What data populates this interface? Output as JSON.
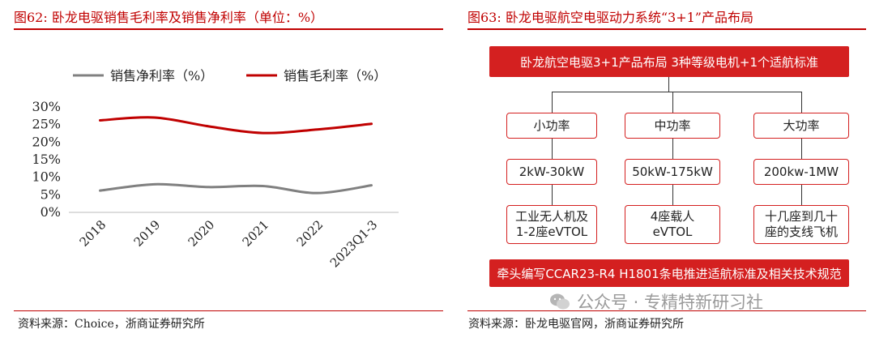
{
  "left": {
    "figure_title": "图62:   卧龙电驱销售毛利率及销售净利率（单位：%）",
    "source": "资料来源：Choice，浙商证券研究所"
  },
  "right": {
    "figure_title": "图63:   卧龙电驱航空电驱动力系统“3+1”产品布局",
    "source": "资料来源：卧龙电驱官网，浙商证券研究所",
    "top_banner": "卧龙航空电驱3+1产品布局  3种等级电机+1个适航标准",
    "bottom_banner": "牵头编写CCAR23-R4 H1801条电推进适航标准及相关技术规范",
    "columns": [
      {
        "level": "小功率",
        "power": "2kW-30kW",
        "use_line1": "工业无人机及",
        "use_line2": "1-2座eVTOL"
      },
      {
        "level": "中功率",
        "power": "50kW-175kW",
        "use_line1": "4座载人",
        "use_line2": "eVTOL"
      },
      {
        "level": "大功率",
        "power": "200kw-1MW",
        "use_line1": "十几座到几十",
        "use_line2": "座的支线飞机"
      }
    ],
    "watermark": "公众号 · 专精特新研习社"
  },
  "chart_data": {
    "type": "line",
    "title": "卧龙电驱销售毛利率及销售净利率（单位：%）",
    "categories": [
      "2018",
      "2019",
      "2020",
      "2021",
      "2022",
      "2023Q1-3"
    ],
    "yticks": [
      "0%",
      "5%",
      "10%",
      "15%",
      "20%",
      "25%",
      "30%"
    ],
    "ylim": [
      0,
      30
    ],
    "grid": false,
    "legend": "top",
    "series": [
      {
        "name": "销售净利率（%）",
        "color": "#808080",
        "values": [
          6.2,
          8.0,
          7.2,
          7.5,
          5.5,
          7.7
        ]
      },
      {
        "name": "销售毛利率（%）",
        "color": "#c00000",
        "values": [
          26.2,
          27.0,
          24.5,
          22.6,
          23.6,
          25.2
        ]
      }
    ]
  }
}
